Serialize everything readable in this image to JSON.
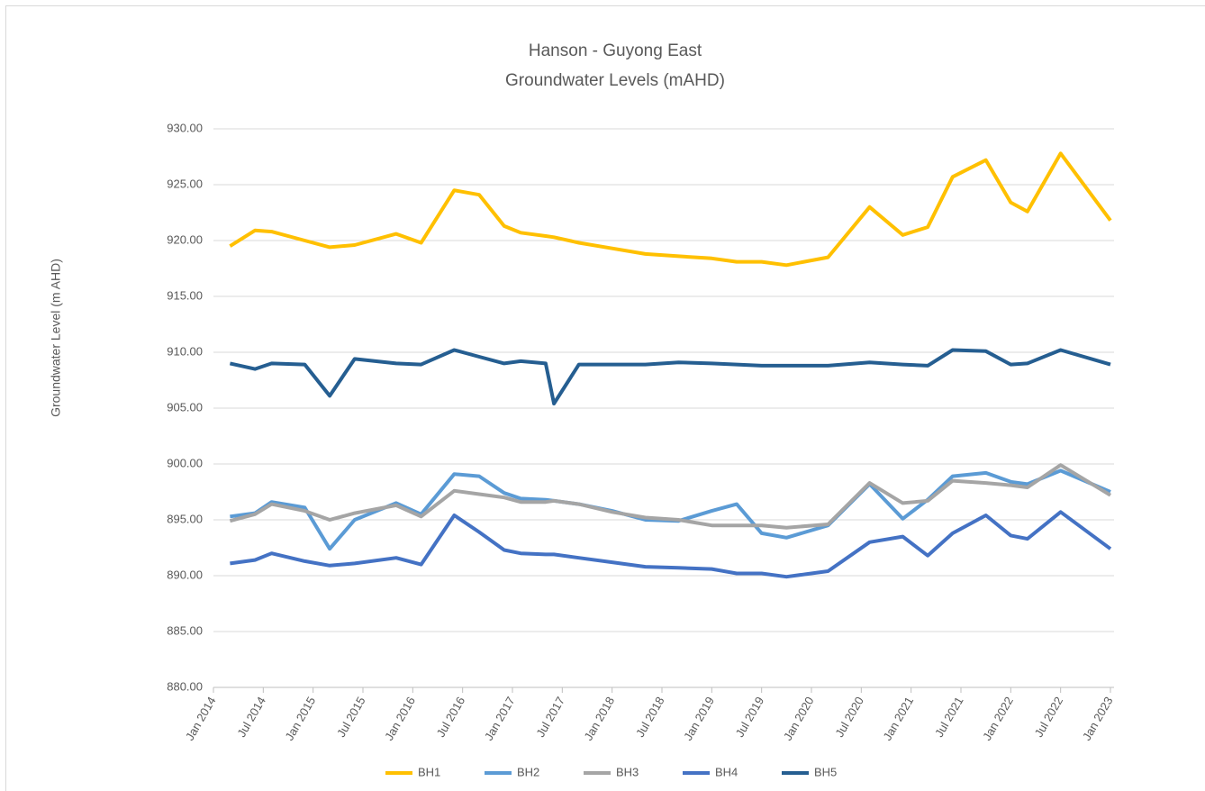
{
  "chart_data": {
    "type": "line",
    "title": [
      "Hanson - Guyong East",
      "Groundwater Levels (mAHD)"
    ],
    "y_label": "Groundwater Level (m AHD)",
    "x": [
      "2014-03",
      "2014-06",
      "2014-08",
      "2014-12",
      "2015-03",
      "2015-06",
      "2015-11",
      "2016-02",
      "2016-06",
      "2016-09",
      "2016-12",
      "2017-02",
      "2017-05",
      "2017-06",
      "2017-09",
      "2018-01",
      "2018-05",
      "2018-09",
      "2019-01",
      "2019-04",
      "2019-07",
      "2019-10",
      "2020-03",
      "2020-08",
      "2020-12",
      "2021-03",
      "2021-06",
      "2021-10",
      "2022-01",
      "2022-03",
      "2022-07",
      "2023-01"
    ],
    "series": [
      {
        "name": "BH1",
        "color": "#ffc000",
        "values": [
          919.5,
          920.9,
          920.8,
          920.0,
          919.4,
          919.6,
          920.6,
          919.8,
          924.5,
          924.1,
          921.3,
          920.7,
          920.4,
          920.3,
          919.8,
          919.3,
          918.8,
          918.6,
          918.4,
          918.1,
          918.1,
          917.8,
          918.5,
          923.0,
          920.5,
          921.2,
          925.7,
          927.2,
          923.4,
          922.6,
          927.8,
          921.8
        ]
      },
      {
        "name": "BH2",
        "color": "#5b9bd5",
        "values": [
          895.3,
          895.6,
          896.6,
          896.1,
          892.4,
          895.0,
          896.5,
          895.5,
          899.1,
          898.9,
          897.4,
          896.9,
          896.8,
          896.7,
          896.4,
          895.8,
          895.0,
          894.9,
          895.8,
          896.4,
          893.8,
          893.4,
          894.5,
          898.2,
          895.1,
          896.8,
          898.9,
          899.2,
          898.4,
          898.2,
          899.4,
          897.5
        ]
      },
      {
        "name": "BH3",
        "color": "#a5a5a5",
        "values": [
          894.9,
          895.5,
          896.4,
          895.8,
          895.0,
          895.6,
          896.3,
          895.3,
          897.6,
          897.3,
          897.0,
          896.6,
          896.6,
          896.7,
          896.4,
          895.7,
          895.2,
          895.0,
          894.5,
          894.5,
          894.5,
          894.3,
          894.6,
          898.3,
          896.5,
          896.7,
          898.5,
          898.3,
          898.1,
          897.9,
          899.9,
          897.2
        ]
      },
      {
        "name": "BH4",
        "color": "#4472c4",
        "values": [
          891.1,
          891.4,
          892.0,
          891.3,
          890.9,
          891.1,
          891.6,
          891.0,
          895.4,
          893.9,
          892.3,
          892.0,
          891.9,
          891.9,
          891.6,
          891.2,
          890.8,
          890.7,
          890.6,
          890.2,
          890.2,
          889.9,
          890.4,
          893.0,
          893.5,
          891.8,
          893.8,
          895.4,
          893.6,
          893.3,
          895.7,
          892.4
        ]
      },
      {
        "name": "BH5",
        "color": "#255e91",
        "values": [
          909.0,
          908.5,
          909.0,
          908.9,
          906.1,
          909.4,
          909.0,
          908.9,
          910.2,
          909.6,
          909.0,
          909.2,
          909.0,
          905.4,
          908.9,
          908.9,
          908.9,
          909.1,
          909.0,
          908.9,
          908.8,
          908.8,
          908.8,
          909.1,
          908.9,
          908.8,
          910.2,
          910.1,
          908.9,
          909.0,
          910.2,
          908.9
        ]
      }
    ],
    "xlim": [
      "2014-01",
      "2023-01"
    ],
    "xticks": [
      {
        "value": "2014-01",
        "label": "Jan 2014"
      },
      {
        "value": "2014-07",
        "label": "Jul 2014"
      },
      {
        "value": "2015-01",
        "label": "Jan 2015"
      },
      {
        "value": "2015-07",
        "label": "Jul 2015"
      },
      {
        "value": "2016-01",
        "label": "Jan 2016"
      },
      {
        "value": "2016-07",
        "label": "Jul 2016"
      },
      {
        "value": "2017-01",
        "label": "Jan 2017"
      },
      {
        "value": "2017-07",
        "label": "Jul 2017"
      },
      {
        "value": "2018-01",
        "label": "Jan 2018"
      },
      {
        "value": "2018-07",
        "label": "Jul 2018"
      },
      {
        "value": "2019-01",
        "label": "Jan 2019"
      },
      {
        "value": "2019-07",
        "label": "Jul 2019"
      },
      {
        "value": "2020-01",
        "label": "Jan 2020"
      },
      {
        "value": "2020-07",
        "label": "Jul 2020"
      },
      {
        "value": "2021-01",
        "label": "Jan 2021"
      },
      {
        "value": "2021-07",
        "label": "Jul 2021"
      },
      {
        "value": "2022-01",
        "label": "Jan 2022"
      },
      {
        "value": "2022-07",
        "label": "Jul 2022"
      },
      {
        "value": "2023-01",
        "label": "Jan 2023"
      }
    ],
    "ylim": [
      880,
      930
    ],
    "yticks": [
      {
        "value": 880,
        "label": "880.00"
      },
      {
        "value": 885,
        "label": "885.00"
      },
      {
        "value": 890,
        "label": "890.00"
      },
      {
        "value": 895,
        "label": "895.00"
      },
      {
        "value": 900,
        "label": "900.00"
      },
      {
        "value": 905,
        "label": "905.00"
      },
      {
        "value": 910,
        "label": "910.00"
      },
      {
        "value": 915,
        "label": "915.00"
      },
      {
        "value": 920,
        "label": "920.00"
      },
      {
        "value": 925,
        "label": "925.00"
      },
      {
        "value": 930,
        "label": "930.00"
      }
    ],
    "grid": true,
    "legend": "bottom"
  }
}
